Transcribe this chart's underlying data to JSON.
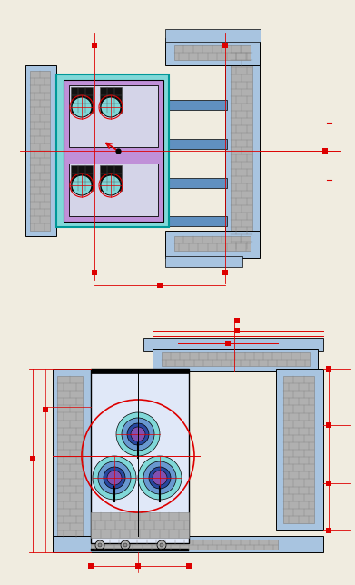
{
  "bg_color": "#f0ece0",
  "blue_light": "#a8c4e0",
  "blue_mid": "#6090c0",
  "blue_dark": "#4070a0",
  "gray_brick": "#808080",
  "gray_light": "#b0b0b0",
  "gray_mid": "#909090",
  "cyan_light": "#80d8d8",
  "purple_light": "#c090d8",
  "purple_mid": "#8050b0",
  "teal": "#40b0b0",
  "dark_blue": "#2848a0",
  "red_line": "#dd0000",
  "black": "#000000",
  "white": "#ffffff"
}
